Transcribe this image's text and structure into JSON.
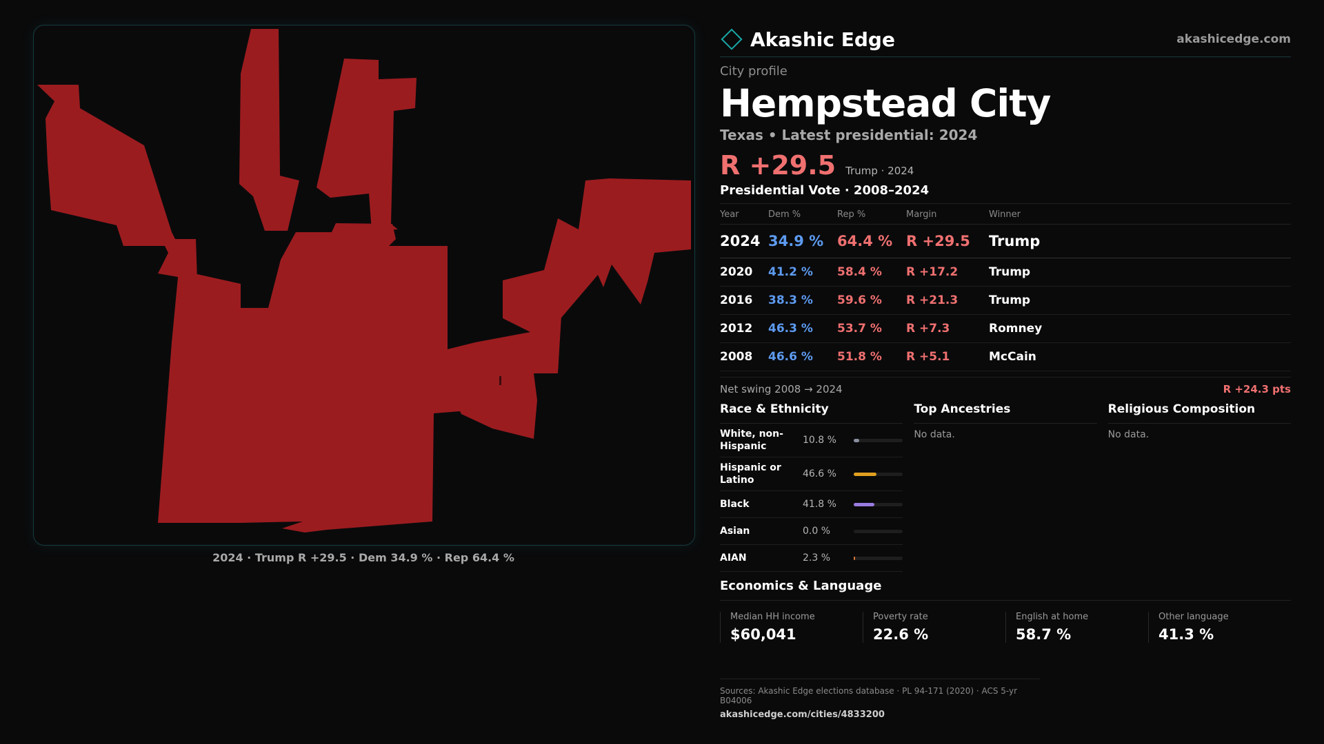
{
  "map": {
    "caption": "2024 · Trump R +29.5 · Dem 34.9 % · Rep 64.4 %",
    "fill_color": "#9b1c1f"
  },
  "brand": {
    "name": "Akashic Edge",
    "site": "akashicedge.com",
    "icon": "diamond-icon"
  },
  "profile": {
    "kicker": "City profile",
    "city": "Hempstead City",
    "state_line": "Texas • Latest presidential: 2024",
    "margin": "R +29.5",
    "margin_note": "Trump · 2024"
  },
  "votes": {
    "title": "Presidential Vote · 2008–2024",
    "headers": [
      "Year",
      "Dem %",
      "Rep %",
      "Margin",
      "Winner"
    ],
    "rows": [
      {
        "year": "2024",
        "dem": "34.9 %",
        "rep": "64.4 %",
        "margin": "R +29.5",
        "winner": "Trump"
      },
      {
        "year": "2020",
        "dem": "41.2 %",
        "rep": "58.4 %",
        "margin": "R +17.2",
        "winner": "Trump"
      },
      {
        "year": "2016",
        "dem": "38.3 %",
        "rep": "59.6 %",
        "margin": "R +21.3",
        "winner": "Trump"
      },
      {
        "year": "2012",
        "dem": "46.3 %",
        "rep": "53.7 %",
        "margin": "R +7.3",
        "winner": "Romney"
      },
      {
        "year": "2008",
        "dem": "46.6 %",
        "rep": "51.8 %",
        "margin": "R +5.1",
        "winner": "McCain"
      }
    ],
    "swing_label": "Net swing 2008 → 2024",
    "swing_value": "R +24.3 pts"
  },
  "race": {
    "title": "Race & Ethnicity",
    "rows": [
      {
        "label": "White, non-Hispanic",
        "value": "10.8 %",
        "pct": 10.8,
        "color": "#8a8fa0"
      },
      {
        "label": "Hispanic or Latino",
        "value": "46.6 %",
        "pct": 46.6,
        "color": "#e0a020"
      },
      {
        "label": "Black",
        "value": "41.8 %",
        "pct": 41.8,
        "color": "#9a7be0"
      },
      {
        "label": "Asian",
        "value": "0.0 %",
        "pct": 0.0,
        "color": "#5bc0c0"
      },
      {
        "label": "AIAN",
        "value": "2.3 %",
        "pct": 2.3,
        "color": "#e07a30"
      }
    ]
  },
  "ancestries": {
    "title": "Top Ancestries",
    "empty": "No data."
  },
  "religion": {
    "title": "Religious Composition",
    "empty": "No data."
  },
  "economics": {
    "title": "Economics & Language",
    "items": [
      {
        "label": "Median HH income",
        "value": "$60,041"
      },
      {
        "label": "Poverty rate",
        "value": "22.6 %"
      },
      {
        "label": "English at home",
        "value": "58.7 %"
      },
      {
        "label": "Other language",
        "value": "41.3 %"
      }
    ]
  },
  "sources": {
    "text": "Sources: Akashic Edge elections database · PL 94-171 (2020) · ACS 5-yr B04006",
    "url": "akashicedge.com/cities/4833200"
  }
}
